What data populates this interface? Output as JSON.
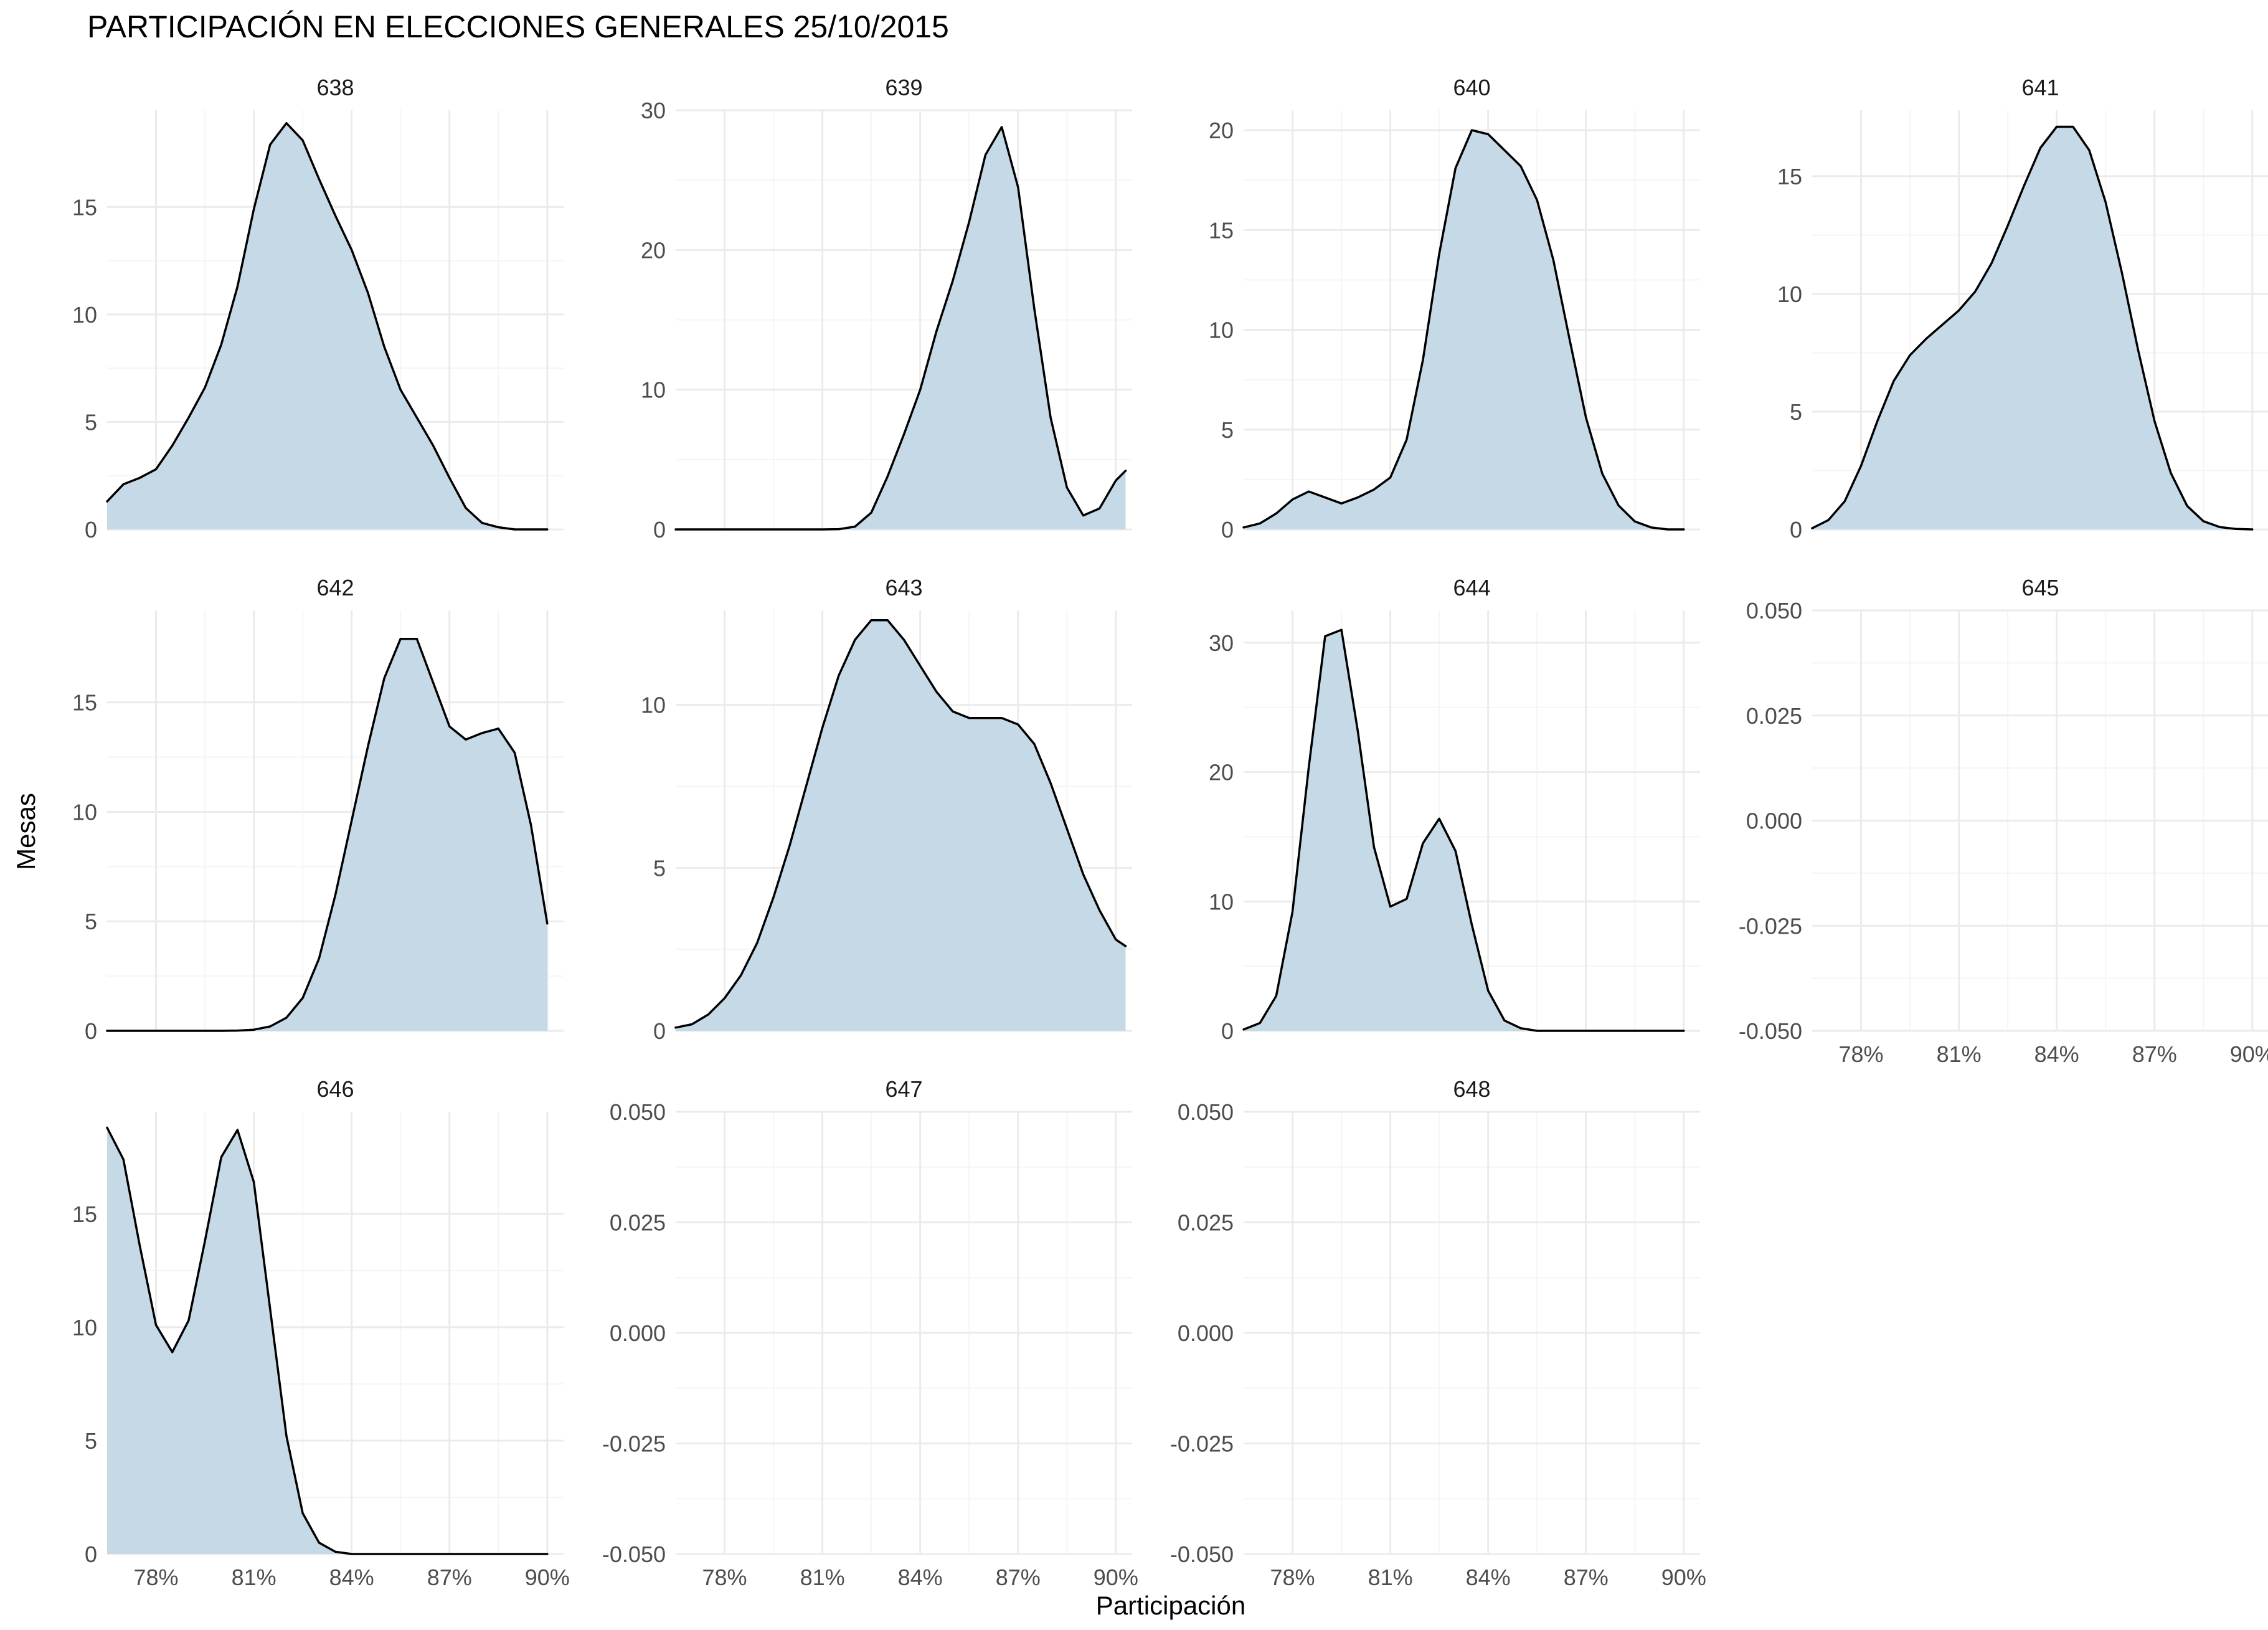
{
  "chart_data": {
    "type": "area",
    "title": "PARTICIPACIÓN EN ELECCIONES GENERALES 25/10/2015",
    "xlabel": "Participación",
    "ylabel": "Mesas",
    "xlim": [
      76.5,
      90.5
    ],
    "x_ticks": [
      78,
      81,
      84,
      87,
      90
    ],
    "x_tick_labels": [
      "78%",
      "81%",
      "84%",
      "87%",
      "90%"
    ],
    "grid": true,
    "fill_color": "#c6d9e6",
    "line_color": "#000000",
    "panels": [
      {
        "title": "638",
        "ylim": [
          0,
          19.5
        ],
        "y_ticks": [
          0,
          5,
          10,
          15
        ],
        "y_tick_labels": [
          "0",
          "5",
          "10",
          "15"
        ],
        "x": [
          76.5,
          77,
          77.5,
          78,
          78.5,
          79,
          79.5,
          80,
          80.5,
          81,
          81.5,
          82,
          82.5,
          83,
          83.5,
          84,
          84.5,
          85,
          85.5,
          86,
          86.5,
          87,
          87.5,
          88,
          88.5,
          89,
          89.5,
          90
        ],
        "y": [
          1.3,
          2.1,
          2.4,
          2.8,
          3.9,
          5.2,
          6.6,
          8.6,
          11.3,
          14.9,
          17.9,
          18.9,
          18.1,
          16.3,
          14.6,
          13.0,
          11.0,
          8.5,
          6.5,
          5.2,
          3.9,
          2.4,
          1.0,
          0.3,
          0.1,
          0,
          0,
          0
        ]
      },
      {
        "title": "639",
        "ylim": [
          0,
          30
        ],
        "y_ticks": [
          0,
          10,
          20,
          30
        ],
        "y_tick_labels": [
          "0",
          "10",
          "20",
          "30"
        ],
        "x": [
          76.5,
          77,
          77.5,
          78,
          78.5,
          79,
          79.5,
          80,
          80.5,
          81,
          81.5,
          82,
          82.5,
          83,
          83.5,
          84,
          84.5,
          85,
          85.5,
          86,
          86.5,
          87,
          87.5,
          88,
          88.5,
          89,
          89.5,
          90,
          90.3
        ],
        "y": [
          0,
          0,
          0,
          0,
          0,
          0,
          0,
          0,
          0,
          0,
          0.02,
          0.2,
          1.2,
          3.8,
          6.8,
          10.0,
          14.2,
          17.8,
          22.0,
          26.8,
          28.8,
          24.5,
          15.8,
          8.0,
          3.0,
          1.0,
          1.5,
          3.5,
          4.2
        ]
      },
      {
        "title": "640",
        "ylim": [
          0,
          21
        ],
        "y_ticks": [
          0,
          5,
          10,
          15,
          20
        ],
        "y_tick_labels": [
          "0",
          "5",
          "10",
          "15",
          "20"
        ],
        "x": [
          76.5,
          77,
          77.5,
          78,
          78.5,
          79,
          79.5,
          80,
          80.5,
          81,
          81.5,
          82,
          82.5,
          83,
          83.5,
          84,
          84.5,
          85,
          85.5,
          86,
          86.5,
          87,
          87.5,
          88,
          88.5,
          89,
          89.5,
          90
        ],
        "y": [
          0.1,
          0.3,
          0.8,
          1.5,
          1.9,
          1.6,
          1.3,
          1.6,
          2.0,
          2.6,
          4.5,
          8.5,
          13.8,
          18.1,
          20.0,
          19.8,
          19.0,
          18.2,
          16.5,
          13.5,
          9.5,
          5.6,
          2.8,
          1.2,
          0.4,
          0.1,
          0,
          0
        ]
      },
      {
        "title": "641",
        "ylim": [
          0,
          17.8
        ],
        "y_ticks": [
          0,
          5,
          10,
          15
        ],
        "y_tick_labels": [
          "0",
          "5",
          "10",
          "15"
        ],
        "x": [
          76.5,
          77,
          77.5,
          78,
          78.5,
          79,
          79.5,
          80,
          80.5,
          81,
          81.5,
          82,
          82.5,
          83,
          83.5,
          84,
          84.5,
          85,
          85.5,
          86,
          86.5,
          87,
          87.5,
          88,
          88.5,
          89,
          89.5,
          90
        ],
        "y": [
          0.05,
          0.4,
          1.2,
          2.7,
          4.6,
          6.3,
          7.4,
          8.1,
          8.7,
          9.3,
          10.1,
          11.3,
          12.9,
          14.6,
          16.2,
          17.1,
          17.1,
          16.1,
          13.9,
          10.9,
          7.6,
          4.6,
          2.4,
          1.0,
          0.35,
          0.1,
          0.02,
          0
        ]
      },
      {
        "title": "642",
        "ylim": [
          0,
          19.2
        ],
        "y_ticks": [
          0,
          5,
          10,
          15
        ],
        "y_tick_labels": [
          "0",
          "5",
          "10",
          "15"
        ],
        "x": [
          76.5,
          77,
          77.5,
          78,
          78.5,
          79,
          79.5,
          80,
          80.5,
          81,
          81.5,
          82,
          82.5,
          83,
          83.5,
          84,
          84.5,
          85,
          85.5,
          86,
          86.5,
          87,
          87.5,
          88,
          88.5,
          89,
          89.5,
          90
        ],
        "y": [
          0,
          0,
          0,
          0,
          0,
          0,
          0,
          0,
          0.01,
          0.05,
          0.2,
          0.6,
          1.5,
          3.3,
          6.2,
          9.6,
          13.0,
          16.1,
          17.9,
          17.9,
          15.9,
          13.9,
          13.3,
          13.6,
          13.8,
          12.7,
          9.4,
          4.9
        ]
      },
      {
        "title": "643",
        "ylim": [
          0,
          12.9
        ],
        "y_ticks": [
          0,
          5,
          10
        ],
        "y_tick_labels": [
          "0",
          "5",
          "10"
        ],
        "x": [
          76.5,
          77,
          77.5,
          78,
          78.5,
          79,
          79.5,
          80,
          80.5,
          81,
          81.5,
          82,
          82.5,
          83,
          83.5,
          84,
          84.5,
          85,
          85.5,
          86,
          86.5,
          87,
          87.5,
          88,
          88.5,
          89,
          89.5,
          90,
          90.3
        ],
        "y": [
          0.1,
          0.2,
          0.5,
          1.0,
          1.7,
          2.7,
          4.1,
          5.7,
          7.5,
          9.3,
          10.9,
          12.0,
          12.6,
          12.6,
          12.0,
          11.2,
          10.4,
          9.8,
          9.6,
          9.6,
          9.6,
          9.4,
          8.8,
          7.6,
          6.2,
          4.8,
          3.7,
          2.8,
          2.6
        ]
      },
      {
        "title": "644",
        "ylim": [
          0,
          32.5
        ],
        "y_ticks": [
          0,
          10,
          20,
          30
        ],
        "y_tick_labels": [
          "0",
          "10",
          "20",
          "30"
        ],
        "x": [
          76.5,
          77,
          77.5,
          78,
          78.5,
          79,
          79.5,
          80,
          80.5,
          81,
          81.5,
          82,
          82.5,
          83,
          83.5,
          84,
          84.5,
          85,
          85.5,
          86,
          86.5,
          87,
          87.5,
          88,
          88.5,
          89,
          89.5,
          90
        ],
        "y": [
          0.1,
          0.6,
          2.7,
          9.2,
          20.4,
          30.5,
          31.0,
          23.2,
          14.2,
          9.6,
          10.2,
          14.5,
          16.4,
          13.9,
          8.2,
          3.1,
          0.8,
          0.2,
          0,
          0,
          0,
          0,
          0,
          0,
          0,
          0,
          0,
          0
        ]
      },
      {
        "title": "645",
        "ylim": [
          -0.05,
          0.05
        ],
        "y_ticks": [
          -0.05,
          -0.025,
          0,
          0.025,
          0.05
        ],
        "y_tick_labels": [
          "-0.050",
          "-0.025",
          "0.000",
          "0.025",
          "0.050"
        ],
        "x": [],
        "y": []
      },
      {
        "title": "646",
        "ylim": [
          0,
          19.5
        ],
        "y_ticks": [
          0,
          5,
          10,
          15
        ],
        "y_tick_labels": [
          "0",
          "5",
          "10",
          "15"
        ],
        "x": [
          76.5,
          77,
          77.5,
          78,
          78.5,
          79,
          79.5,
          80,
          80.5,
          81,
          81.5,
          82,
          82.5,
          83,
          83.5,
          84,
          84.5,
          85,
          85.5,
          86,
          86.5,
          87,
          87.5,
          88,
          88.5,
          89,
          89.5,
          90
        ],
        "y": [
          18.8,
          17.4,
          13.6,
          10.1,
          8.9,
          10.3,
          13.8,
          17.5,
          18.7,
          16.4,
          10.8,
          5.2,
          1.8,
          0.5,
          0.1,
          0,
          0,
          0,
          0,
          0,
          0,
          0,
          0,
          0,
          0,
          0,
          0,
          0
        ]
      },
      {
        "title": "647",
        "ylim": [
          -0.05,
          0.05
        ],
        "y_ticks": [
          -0.05,
          -0.025,
          0,
          0.025,
          0.05
        ],
        "y_tick_labels": [
          "-0.050",
          "-0.025",
          "0.000",
          "0.025",
          "0.050"
        ],
        "x": [],
        "y": []
      },
      {
        "title": "648",
        "ylim": [
          -0.05,
          0.05
        ],
        "y_ticks": [
          -0.05,
          -0.025,
          0,
          0.025,
          0.05
        ],
        "y_tick_labels": [
          "-0.050",
          "-0.025",
          "0.000",
          "0.025",
          "0.050"
        ],
        "x": [],
        "y": []
      }
    ]
  }
}
